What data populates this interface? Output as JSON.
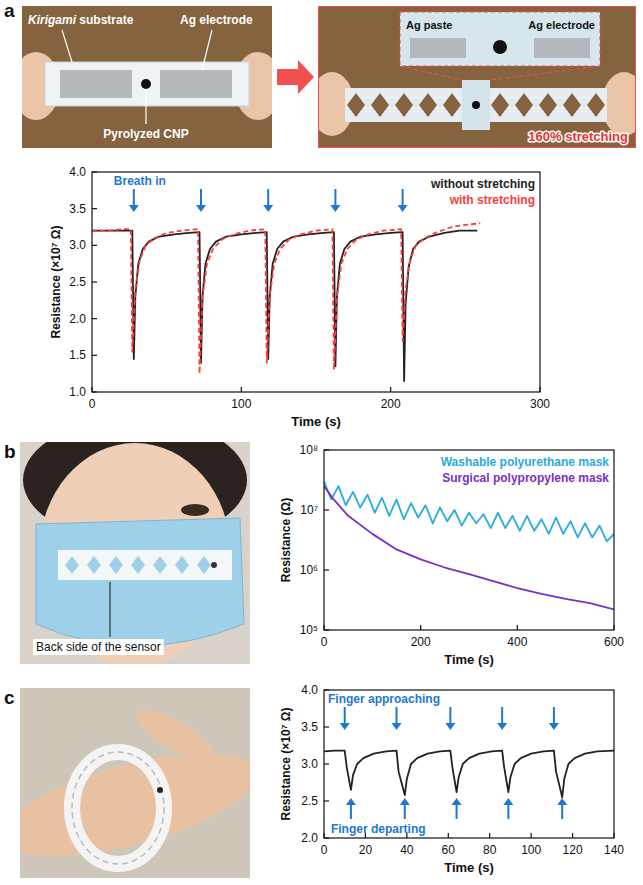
{
  "panel_labels": [
    "a",
    "b",
    "c"
  ],
  "photos": [
    {
      "panel": "a",
      "labels": [
        "Kirigami substrate",
        "Ag electrode",
        "Pyrolyzed CNP"
      ]
    },
    {
      "panel": "a",
      "labels": [
        "Ag paste",
        "Ag electrode",
        "160% stretching"
      ]
    },
    {
      "panel": "b",
      "labels": [
        "Back side of the sensor"
      ]
    },
    {
      "panel": "c",
      "labels": []
    }
  ],
  "chart_data": [
    {
      "type": "line",
      "x_label": "Time (s)",
      "y_label": "Resistance (×10⁷ Ω)",
      "xlim": [
        0,
        300
      ],
      "ylim": [
        1,
        4
      ],
      "xticks": [
        0,
        100,
        200,
        300
      ],
      "yticks": [
        {
          "value": 1,
          "label": "1.0"
        },
        1.5,
        {
          "value": 2,
          "label": "2.0"
        },
        2.5,
        {
          "value": 3,
          "label": "3.0"
        },
        3.5,
        {
          "value": 4,
          "label": "4.0"
        }
      ],
      "legend": "upper right",
      "annotations": [
        {
          "text": "Breath in",
          "x": [
            28,
            73,
            118,
            163,
            208
          ]
        }
      ],
      "series": [
        {
          "name": "without stretching",
          "color": "#222222",
          "line_style": "solid",
          "x": [
            0,
            10,
            20,
            27,
            28,
            29,
            31,
            34,
            38,
            45,
            55,
            65,
            72,
            73,
            74,
            76,
            79,
            83,
            90,
            100,
            110,
            117,
            118,
            119,
            121,
            124,
            128,
            135,
            145,
            155,
            162,
            163,
            164,
            166,
            169,
            173,
            180,
            190,
            200,
            208,
            209,
            210,
            212,
            215,
            219,
            226,
            236,
            246,
            258
          ],
          "values": [
            3.2,
            3.2,
            3.2,
            3.2,
            1.45,
            2.3,
            2.75,
            2.95,
            3.05,
            3.12,
            3.15,
            3.17,
            3.18,
            1.4,
            2.3,
            2.75,
            2.95,
            3.05,
            3.12,
            3.15,
            3.17,
            3.18,
            1.45,
            2.3,
            2.75,
            2.95,
            3.05,
            3.12,
            3.15,
            3.17,
            3.18,
            1.35,
            2.3,
            2.75,
            2.95,
            3.05,
            3.12,
            3.15,
            3.17,
            3.18,
            1.15,
            2.2,
            2.7,
            2.95,
            3.05,
            3.12,
            3.17,
            3.2,
            3.2
          ]
        },
        {
          "name": "with stretching",
          "color": "#ff3b3b",
          "line_style": "dashed",
          "x": [
            0,
            10,
            20,
            26,
            27,
            29,
            32,
            36,
            42,
            50,
            60,
            71,
            72,
            74,
            77,
            81,
            87,
            95,
            105,
            116,
            117,
            119,
            122,
            126,
            132,
            140,
            150,
            161,
            162,
            164,
            167,
            171,
            177,
            185,
            195,
            207,
            208,
            210,
            213,
            217,
            223,
            231,
            241,
            250,
            260
          ],
          "values": [
            3.2,
            3.2,
            3.22,
            3.22,
            1.55,
            2.4,
            2.8,
            3.0,
            3.1,
            3.17,
            3.2,
            3.22,
            1.25,
            2.3,
            2.75,
            2.95,
            3.08,
            3.15,
            3.2,
            3.22,
            1.4,
            2.3,
            2.75,
            2.95,
            3.08,
            3.15,
            3.2,
            3.22,
            1.3,
            2.3,
            2.75,
            2.95,
            3.08,
            3.15,
            3.2,
            3.22,
            1.7,
            2.4,
            2.8,
            3.0,
            3.1,
            3.18,
            3.25,
            3.28,
            3.3
          ]
        }
      ]
    },
    {
      "type": "line",
      "x_label": "Time (s)",
      "y_label": "Resistance (Ω)",
      "log": "y",
      "xlim": [
        0,
        600
      ],
      "ylim": [
        100000,
        100000000
      ],
      "xticks": [
        0,
        200,
        400,
        600
      ],
      "yticks": [
        {
          "value": 100000,
          "label": "10⁵"
        },
        {
          "value": 1000000,
          "label": "10⁶"
        },
        {
          "value": 10000000,
          "label": "10⁷"
        },
        {
          "value": 100000000,
          "label": "10⁸"
        }
      ],
      "legend": "upper right",
      "series": [
        {
          "name": "Washable polyurethane mask",
          "color": "#29abe2",
          "x": [
            0,
            15,
            30,
            45,
            60,
            75,
            90,
            105,
            120,
            135,
            150,
            165,
            180,
            195,
            210,
            225,
            240,
            255,
            270,
            285,
            300,
            315,
            330,
            345,
            360,
            375,
            390,
            405,
            420,
            435,
            450,
            465,
            480,
            495,
            510,
            525,
            540,
            555,
            570,
            585,
            600
          ],
          "values": [
            30000000,
            15000000,
            25000000,
            12000000,
            20000000,
            11000000,
            18000000,
            9000000,
            16000000,
            8000000,
            15000000,
            7000000,
            13000000,
            7500000,
            12000000,
            6000000,
            11000000,
            6500000,
            10000000,
            5500000,
            9000000,
            6000000,
            8500000,
            5000000,
            9000000,
            5000000,
            8000000,
            4500000,
            8000000,
            4500000,
            7000000,
            4000000,
            7500000,
            4000000,
            6500000,
            3500000,
            6000000,
            3500000,
            5500000,
            3000000,
            4000000
          ]
        },
        {
          "name": "Surgical polypropylene mask",
          "color": "#7a2fc7",
          "x": [
            0,
            20,
            50,
            100,
            150,
            200,
            250,
            300,
            350,
            400,
            450,
            500,
            550,
            600
          ],
          "values": [
            25000000,
            15000000,
            8000000,
            4000000,
            2200000,
            1500000,
            1100000,
            850000,
            650000,
            500000,
            400000,
            330000,
            280000,
            220000
          ]
        }
      ]
    },
    {
      "type": "line",
      "x_label": "Time (s)",
      "y_label": "Resistance (×10⁷ Ω)",
      "xlim": [
        0,
        140
      ],
      "ylim": [
        2,
        4
      ],
      "xticks": [
        0,
        20,
        40,
        60,
        80,
        100,
        120,
        140
      ],
      "yticks": [
        {
          "value": 2,
          "label": "2.0"
        },
        2.5,
        {
          "value": 3,
          "label": "3.0"
        },
        3.5,
        {
          "value": 4,
          "label": "4.0"
        }
      ],
      "annotations": [
        {
          "text": "Finger approaching",
          "x": [
            10,
            35,
            61,
            86,
            111
          ]
        },
        {
          "text": "Finger departing",
          "x": [
            13,
            39,
            64,
            89,
            115
          ]
        }
      ],
      "series": [
        {
          "color": "#222222",
          "x": [
            0,
            5,
            10,
            11,
            13,
            14,
            16,
            19,
            24,
            30,
            35,
            36,
            39,
            40,
            42,
            45,
            50,
            56,
            61,
            62,
            64,
            65,
            67,
            70,
            75,
            81,
            86,
            87,
            89,
            90,
            92,
            95,
            100,
            106,
            111,
            112,
            115,
            116,
            118,
            121,
            126,
            132,
            140
          ],
          "values": [
            3.17,
            3.18,
            3.18,
            2.95,
            2.65,
            2.85,
            3.0,
            3.08,
            3.14,
            3.17,
            3.18,
            2.9,
            2.58,
            2.8,
            3.0,
            3.08,
            3.14,
            3.17,
            3.18,
            2.95,
            2.62,
            2.82,
            3.0,
            3.08,
            3.14,
            3.17,
            3.18,
            2.95,
            2.62,
            2.82,
            3.0,
            3.08,
            3.14,
            3.17,
            3.18,
            2.9,
            2.55,
            2.8,
            3.0,
            3.08,
            3.14,
            3.17,
            3.18
          ]
        }
      ]
    }
  ]
}
